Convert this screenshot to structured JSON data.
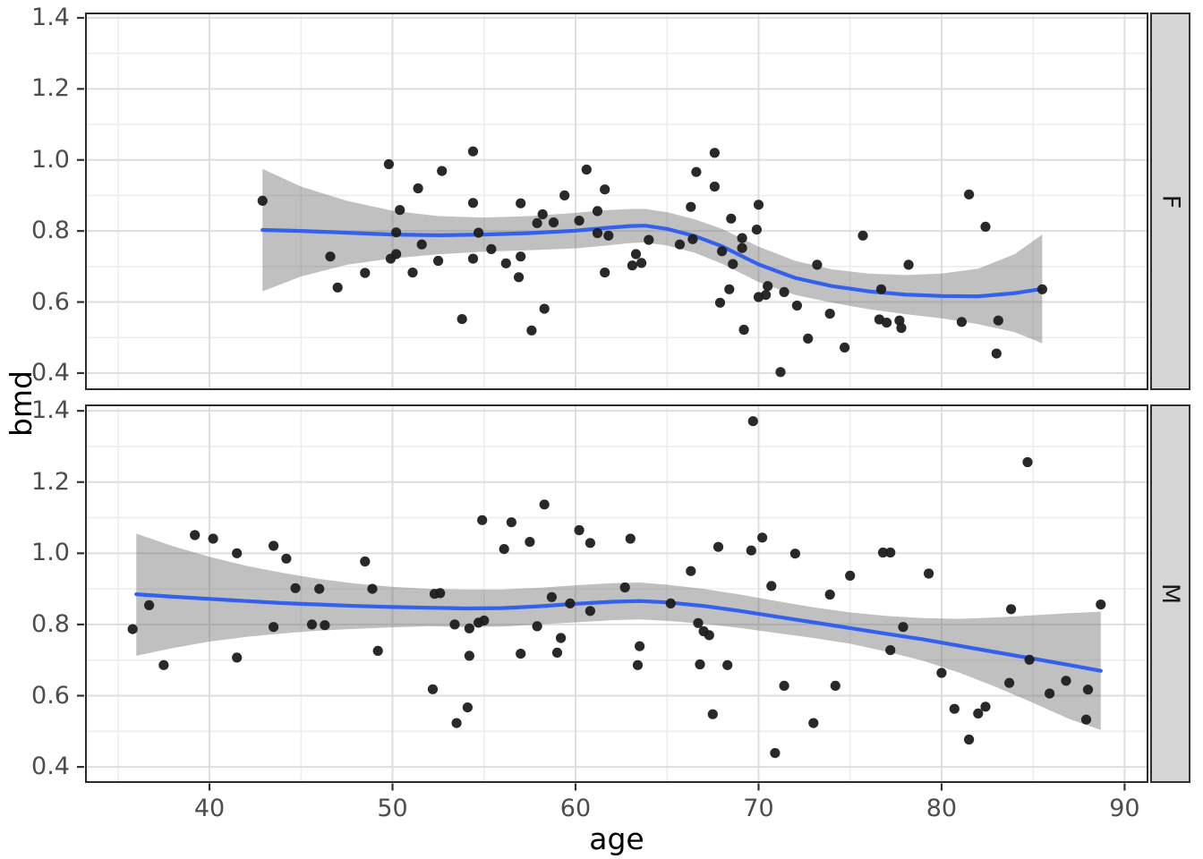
{
  "figure": {
    "x_axis": {
      "label": "age",
      "tick_values": [
        40,
        50,
        60,
        70,
        80,
        90
      ],
      "tick_labels": [
        "40",
        "50",
        "60",
        "70",
        "80",
        "90"
      ],
      "minor_values": [
        35,
        45,
        55,
        65,
        75,
        85
      ],
      "range": [
        33.2,
        91.3
      ]
    },
    "y_axis": {
      "label": "bmd",
      "tick_values": [
        0.4,
        0.6,
        0.8,
        1.0,
        1.2,
        1.4
      ],
      "tick_labels": [
        "0.4",
        "0.6",
        "0.8",
        "1.0",
        "1.2",
        "1.4"
      ],
      "minor_values": [
        0.5,
        0.7,
        0.9,
        1.1,
        1.3
      ]
    },
    "colors": {
      "smooth_line": "#3360EC",
      "confidence_band": "rgba(105,105,105,0.42)",
      "point": "#1e1e1e",
      "grid_major": "#dedede",
      "grid_minor": "#ededed",
      "panel_border": "#2b2b2b",
      "strip_background": "#d5d5d5",
      "tick_text": "#4d4d4d"
    }
  },
  "chart_data": [
    {
      "facet": "F",
      "type": "scatter",
      "x_range": [
        33.2,
        91.3
      ],
      "y_range": [
        0.352,
        1.415
      ],
      "points": [
        [
          42.9,
          0.885
        ],
        [
          49.8,
          0.988
        ],
        [
          51.4,
          0.92
        ],
        [
          50.4,
          0.859
        ],
        [
          50.2,
          0.796
        ],
        [
          51.6,
          0.762
        ],
        [
          46.6,
          0.728
        ],
        [
          49.9,
          0.722
        ],
        [
          50.2,
          0.735
        ],
        [
          48.5,
          0.682
        ],
        [
          51.1,
          0.683
        ],
        [
          47.0,
          0.641
        ],
        [
          52.5,
          0.716
        ],
        [
          52.7,
          0.969
        ],
        [
          54.4,
          1.024
        ],
        [
          54.4,
          0.879
        ],
        [
          54.7,
          0.795
        ],
        [
          55.4,
          0.749
        ],
        [
          54.4,
          0.722
        ],
        [
          56.2,
          0.709
        ],
        [
          57.0,
          0.878
        ],
        [
          57.0,
          0.728
        ],
        [
          56.9,
          0.67
        ],
        [
          57.6,
          0.52
        ],
        [
          53.8,
          0.552
        ],
        [
          57.9,
          0.822
        ],
        [
          58.2,
          0.847
        ],
        [
          58.8,
          0.824
        ],
        [
          59.4,
          0.9
        ],
        [
          58.3,
          0.581
        ],
        [
          60.2,
          0.829
        ],
        [
          60.6,
          0.973
        ],
        [
          61.6,
          0.917
        ],
        [
          61.2,
          0.856
        ],
        [
          61.2,
          0.794
        ],
        [
          61.8,
          0.787
        ],
        [
          61.6,
          0.683
        ],
        [
          63.3,
          0.735
        ],
        [
          63.1,
          0.703
        ],
        [
          63.6,
          0.71
        ],
        [
          64.0,
          0.775
        ],
        [
          65.7,
          0.762
        ],
        [
          66.3,
          0.868
        ],
        [
          66.6,
          0.966
        ],
        [
          67.6,
          1.02
        ],
        [
          67.6,
          0.925
        ],
        [
          66.4,
          0.777
        ],
        [
          68.0,
          0.743
        ],
        [
          68.5,
          0.835
        ],
        [
          68.4,
          0.636
        ],
        [
          68.6,
          0.707
        ],
        [
          69.1,
          0.78
        ],
        [
          69.1,
          0.752
        ],
        [
          67.9,
          0.598
        ],
        [
          69.2,
          0.522
        ],
        [
          70.0,
          0.874
        ],
        [
          69.9,
          0.804
        ],
        [
          70.0,
          0.614
        ],
        [
          70.4,
          0.62
        ],
        [
          70.5,
          0.645
        ],
        [
          71.2,
          0.403
        ],
        [
          71.4,
          0.628
        ],
        [
          72.1,
          0.59
        ],
        [
          81.5,
          0.903
        ],
        [
          82.4,
          0.812
        ],
        [
          75.7,
          0.787
        ],
        [
          73.2,
          0.705
        ],
        [
          78.2,
          0.705
        ],
        [
          73.9,
          0.567
        ],
        [
          76.7,
          0.636
        ],
        [
          76.6,
          0.551
        ],
        [
          77.0,
          0.542
        ],
        [
          77.7,
          0.548
        ],
        [
          77.8,
          0.527
        ],
        [
          72.7,
          0.497
        ],
        [
          74.7,
          0.472
        ],
        [
          81.1,
          0.544
        ],
        [
          83.0,
          0.455
        ],
        [
          83.1,
          0.548
        ],
        [
          85.5,
          0.636
        ]
      ],
      "smooth": {
        "x": [
          42.9,
          45,
          47.5,
          50,
          52.5,
          55,
          57.5,
          60,
          61.5,
          63,
          63.8,
          65,
          66.5,
          68,
          70,
          72,
          74,
          76,
          78,
          80,
          82,
          84,
          85.5
        ],
        "y": [
          0.803,
          0.8,
          0.795,
          0.79,
          0.788,
          0.79,
          0.794,
          0.801,
          0.808,
          0.814,
          0.815,
          0.806,
          0.786,
          0.757,
          0.706,
          0.668,
          0.645,
          0.63,
          0.621,
          0.617,
          0.616,
          0.625,
          0.637
        ]
      },
      "band": {
        "x": [
          42.9,
          45,
          47.5,
          50,
          52.5,
          55,
          57.5,
          60,
          61.5,
          63,
          63.8,
          65,
          66.5,
          68,
          70,
          72,
          74,
          76,
          78,
          80,
          82,
          84,
          85.5
        ],
        "upper": [
          0.975,
          0.925,
          0.885,
          0.857,
          0.842,
          0.838,
          0.842,
          0.851,
          0.858,
          0.862,
          0.862,
          0.853,
          0.833,
          0.806,
          0.756,
          0.716,
          0.692,
          0.68,
          0.676,
          0.68,
          0.694,
          0.735,
          0.79
        ],
        "lower": [
          0.63,
          0.672,
          0.705,
          0.723,
          0.734,
          0.742,
          0.746,
          0.751,
          0.758,
          0.766,
          0.768,
          0.759,
          0.739,
          0.708,
          0.656,
          0.62,
          0.598,
          0.58,
          0.566,
          0.554,
          0.538,
          0.515,
          0.484
        ]
      }
    },
    {
      "facet": "M",
      "type": "scatter",
      "x_range": [
        33.2,
        91.3
      ],
      "y_range": [
        0.355,
        1.418
      ],
      "points": [
        [
          35.8,
          0.787
        ],
        [
          36.7,
          0.854
        ],
        [
          37.5,
          0.686
        ],
        [
          39.2,
          1.051
        ],
        [
          40.2,
          1.041
        ],
        [
          41.5,
          1.0
        ],
        [
          43.5,
          1.021
        ],
        [
          44.2,
          0.985
        ],
        [
          44.7,
          0.902
        ],
        [
          46.0,
          0.9
        ],
        [
          45.6,
          0.8
        ],
        [
          46.3,
          0.798
        ],
        [
          43.5,
          0.793
        ],
        [
          48.5,
          0.977
        ],
        [
          48.9,
          0.9
        ],
        [
          49.2,
          0.726
        ],
        [
          41.5,
          0.707
        ],
        [
          52.2,
          0.618
        ],
        [
          52.3,
          0.886
        ],
        [
          52.6,
          0.888
        ],
        [
          69.7,
          1.371
        ],
        [
          54.9,
          1.093
        ],
        [
          56.5,
          1.087
        ],
        [
          56.1,
          1.012
        ],
        [
          57.5,
          1.032
        ],
        [
          58.3,
          1.137
        ],
        [
          60.2,
          1.065
        ],
        [
          60.8,
          1.029
        ],
        [
          63.0,
          1.041
        ],
        [
          67.8,
          1.018
        ],
        [
          69.6,
          1.008
        ],
        [
          70.2,
          1.044
        ],
        [
          66.3,
          0.95
        ],
        [
          62.7,
          0.904
        ],
        [
          58.7,
          0.877
        ],
        [
          59.7,
          0.859
        ],
        [
          60.8,
          0.838
        ],
        [
          65.2,
          0.859
        ],
        [
          53.4,
          0.8
        ],
        [
          54.2,
          0.789
        ],
        [
          54.7,
          0.805
        ],
        [
          55.0,
          0.811
        ],
        [
          57.9,
          0.795
        ],
        [
          59.2,
          0.762
        ],
        [
          54.2,
          0.712
        ],
        [
          57.0,
          0.718
        ],
        [
          59.0,
          0.721
        ],
        [
          63.5,
          0.739
        ],
        [
          63.4,
          0.686
        ],
        [
          66.7,
          0.804
        ],
        [
          67.0,
          0.781
        ],
        [
          67.3,
          0.77
        ],
        [
          66.8,
          0.688
        ],
        [
          68.3,
          0.686
        ],
        [
          54.1,
          0.567
        ],
        [
          53.5,
          0.523
        ],
        [
          67.5,
          0.548
        ],
        [
          71.4,
          0.628
        ],
        [
          70.9,
          0.439
        ],
        [
          70.7,
          0.908
        ],
        [
          72.0,
          0.999
        ],
        [
          84.7,
          1.256
        ],
        [
          76.8,
          1.002
        ],
        [
          77.2,
          1.002
        ],
        [
          75.0,
          0.937
        ],
        [
          79.3,
          0.943
        ],
        [
          73.9,
          0.884
        ],
        [
          83.8,
          0.843
        ],
        [
          88.7,
          0.856
        ],
        [
          77.9,
          0.793
        ],
        [
          77.2,
          0.728
        ],
        [
          84.8,
          0.701
        ],
        [
          80.0,
          0.664
        ],
        [
          74.2,
          0.628
        ],
        [
          83.7,
          0.636
        ],
        [
          86.8,
          0.642
        ],
        [
          85.9,
          0.606
        ],
        [
          88.0,
          0.617
        ],
        [
          80.7,
          0.563
        ],
        [
          82.0,
          0.55
        ],
        [
          82.4,
          0.569
        ],
        [
          73.0,
          0.523
        ],
        [
          87.9,
          0.533
        ],
        [
          81.5,
          0.477
        ]
      ],
      "smooth": {
        "x": [
          36,
          38,
          40,
          42,
          44,
          46,
          48,
          50,
          52,
          54,
          56,
          58,
          60,
          62,
          63.5,
          65,
          67,
          69,
          71,
          73,
          75,
          77,
          79,
          81,
          83,
          85,
          87,
          88.7
        ],
        "y": [
          0.885,
          0.878,
          0.872,
          0.866,
          0.86,
          0.856,
          0.852,
          0.849,
          0.847,
          0.845,
          0.846,
          0.851,
          0.858,
          0.864,
          0.866,
          0.862,
          0.852,
          0.838,
          0.822,
          0.806,
          0.79,
          0.774,
          0.758,
          0.74,
          0.722,
          0.704,
          0.686,
          0.67
        ]
      },
      "band": {
        "x": [
          36,
          38,
          40,
          42,
          44,
          46,
          48,
          50,
          52,
          54,
          56,
          58,
          60,
          62,
          63.5,
          65,
          67,
          69,
          71,
          73,
          75,
          77,
          79,
          81,
          83,
          85,
          87,
          88.7
        ],
        "upper": [
          1.055,
          1.02,
          0.99,
          0.965,
          0.945,
          0.928,
          0.915,
          0.906,
          0.9,
          0.898,
          0.898,
          0.903,
          0.91,
          0.916,
          0.918,
          0.912,
          0.9,
          0.884,
          0.866,
          0.848,
          0.834,
          0.824,
          0.818,
          0.816,
          0.82,
          0.826,
          0.832,
          0.836
        ],
        "lower": [
          0.712,
          0.734,
          0.752,
          0.765,
          0.775,
          0.783,
          0.788,
          0.792,
          0.795,
          0.793,
          0.794,
          0.8,
          0.806,
          0.812,
          0.814,
          0.81,
          0.802,
          0.79,
          0.776,
          0.762,
          0.746,
          0.724,
          0.698,
          0.664,
          0.624,
          0.58,
          0.534,
          0.504
        ]
      }
    }
  ]
}
